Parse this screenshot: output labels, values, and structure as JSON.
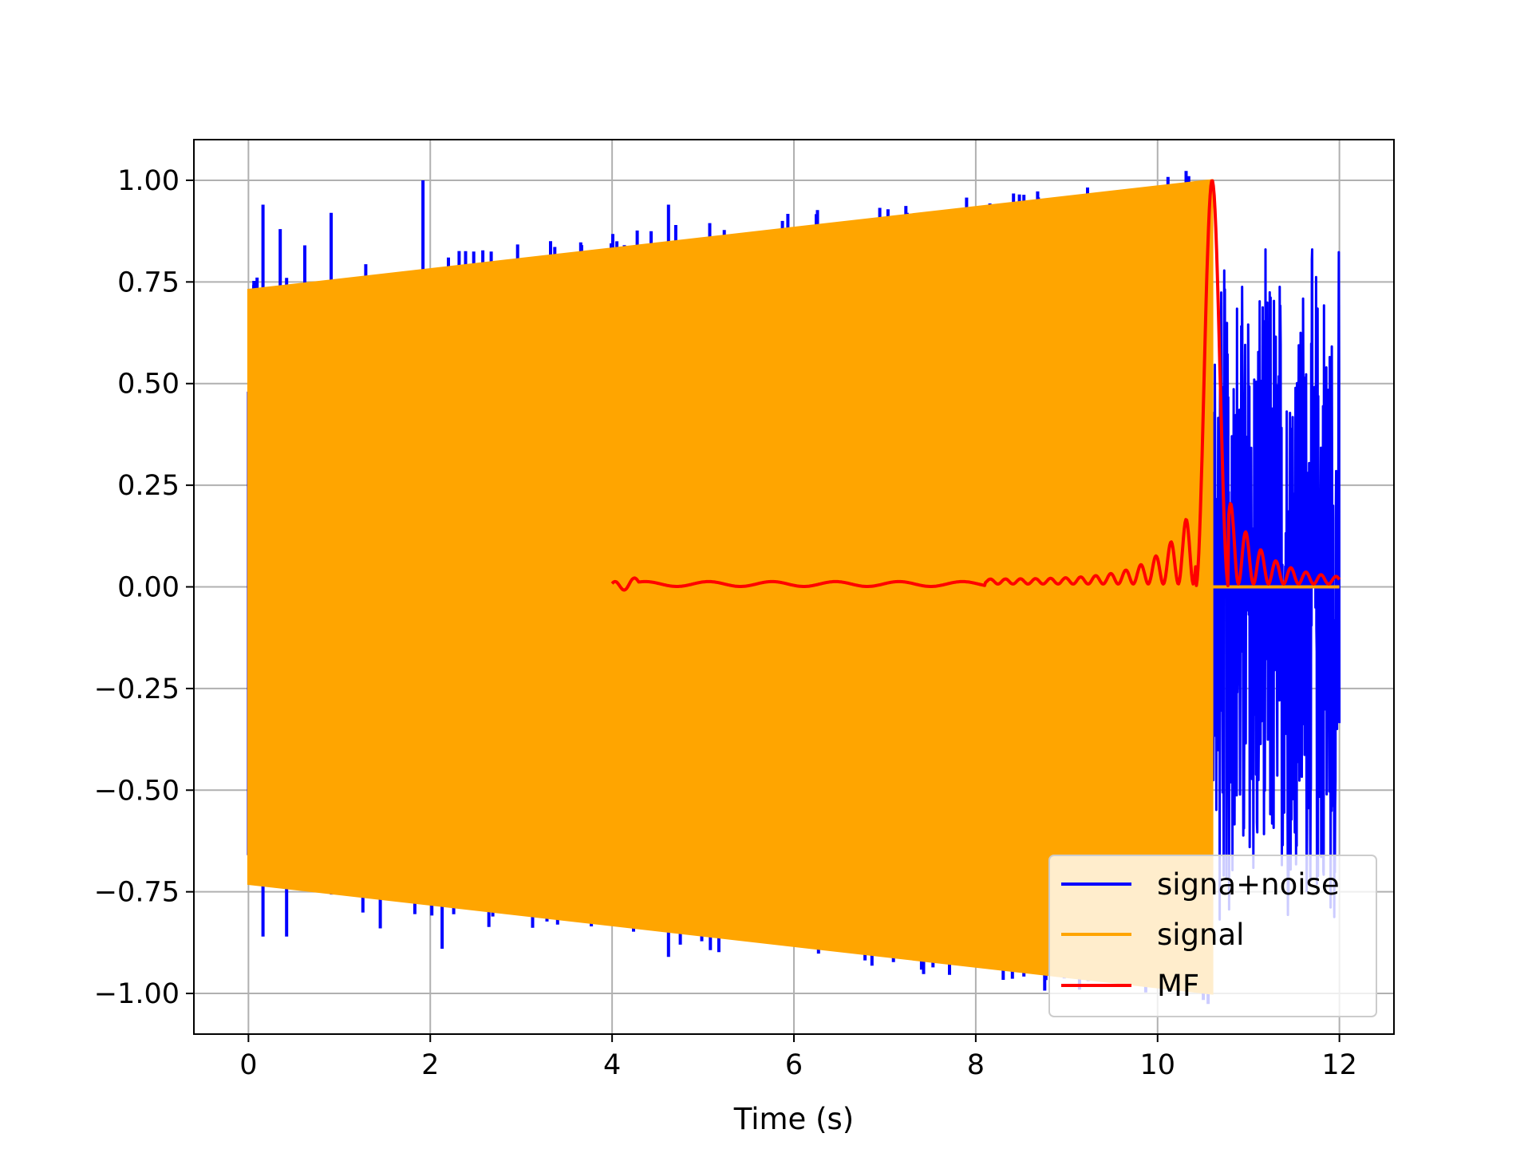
{
  "chart_data": {
    "type": "line",
    "xlabel": "Time (s)",
    "ylabel": "",
    "xlim": [
      -0.6,
      12.6
    ],
    "ylim": [
      -1.1,
      1.1
    ],
    "xticks": [
      0,
      2,
      4,
      6,
      8,
      10,
      12
    ],
    "yticks": [
      1.0,
      0.75,
      0.5,
      0.25,
      0.0,
      -0.25,
      -0.5,
      -0.75,
      -1.0
    ],
    "xtick_labels": [
      "0",
      "2",
      "4",
      "6",
      "8",
      "10",
      "12"
    ],
    "ytick_labels": [
      "1.00",
      "0.75",
      "0.50",
      "0.25",
      "0.00",
      "−0.25",
      "−0.50",
      "−0.75",
      "−1.00"
    ],
    "grid": true,
    "legend_position": "bottom-right",
    "series": [
      {
        "name": "signa+noise",
        "color": "#0000ff",
        "description": "noisy chirp, spikes reach about 1.00; after 10.6 s noise only, amplitude about 0.9",
        "spikes": [
          {
            "x": 0.16,
            "y": 0.94
          },
          {
            "x": 0.35,
            "y": 0.88
          },
          {
            "x": 0.42,
            "y": 0.76
          },
          {
            "x": 0.62,
            "y": 0.84
          },
          {
            "x": 0.91,
            "y": 0.92
          },
          {
            "x": 1.92,
            "y": 1.0
          },
          {
            "x": 2.2,
            "y": 0.81
          },
          {
            "x": 4.62,
            "y": 0.94
          },
          {
            "x": 4.7,
            "y": 0.89
          },
          {
            "x": 0.16,
            "y": -0.86
          },
          {
            "x": 0.42,
            "y": -0.86
          },
          {
            "x": 1.45,
            "y": -0.84
          },
          {
            "x": 2.13,
            "y": -0.89
          },
          {
            "x": 4.62,
            "y": -0.91
          },
          {
            "x": 4.75,
            "y": -0.88
          },
          {
            "x": 5.8,
            "y": -0.87
          },
          {
            "x": 7.65,
            "y": -0.88
          }
        ],
        "noise_tail": {
          "x_start": 10.6,
          "x_end": 12.0,
          "amplitude": 0.9
        }
      },
      {
        "name": "signal",
        "color": "#ffa500",
        "description": "chirp from 0 to 10.6 s, envelope grows from 0.73 to 1.00, zero after",
        "x_start": 0.0,
        "x_end": 10.6,
        "envelope_start": 0.73,
        "envelope_end": 1.0,
        "tail_value": 0.0,
        "tail_end": 12.0
      },
      {
        "name": "MF",
        "color": "#ff0000",
        "description": "matched filter output from 4 to 12 s, near zero with sharp peak of 1.00 at 10.6 s",
        "x_start": 4.0,
        "x_end": 12.0,
        "peak_x": 10.6,
        "peak_y": 1.0,
        "baseline": 0.007
      }
    ]
  }
}
